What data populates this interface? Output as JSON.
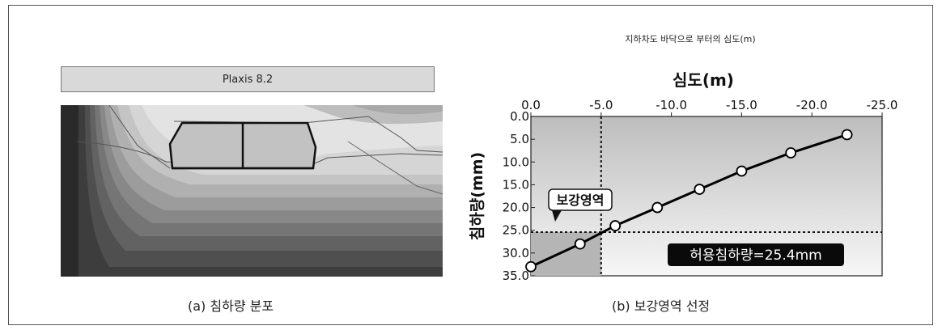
{
  "left_panel": {
    "software_label": "Plaxis 8.2",
    "caption": "(a) 침하량 분포"
  },
  "right_panel": {
    "caption": "(b) 보강영역 선정",
    "chart_data": {
      "type": "line",
      "top_title": "지하차도 바닥으로 부터의 심도(m)",
      "xlabel": "심도(m)",
      "ylabel": "침하량(mm)",
      "xlim": [
        0,
        -25
      ],
      "ylim": [
        0,
        35
      ],
      "x_ticks": [
        "0.0",
        "-5.0",
        "-10.0",
        "-15.0",
        "-20.0",
        "-25.0"
      ],
      "y_ticks": [
        "0.0",
        "5.0",
        "10.0",
        "15.0",
        "20.0",
        "25.0",
        "30.0",
        "35.0"
      ],
      "x_tick_values": [
        0,
        -5,
        -10,
        -15,
        -20,
        -25
      ],
      "y_tick_values": [
        0,
        5,
        10,
        15,
        20,
        25,
        30,
        35
      ],
      "series": [
        {
          "x": [
            0,
            -3.5,
            -6,
            -9,
            -12,
            -15,
            -18.5,
            -22.5
          ],
          "y": [
            33,
            28,
            24,
            20,
            16,
            12,
            8,
            4
          ]
        }
      ],
      "limit_line_y": 25.4,
      "limit_line_x": -5,
      "annotations": {
        "reinforcement_zone": "보강영역",
        "allowable_settlement": "허용침하량=25.4mm"
      },
      "grid": false
    }
  }
}
